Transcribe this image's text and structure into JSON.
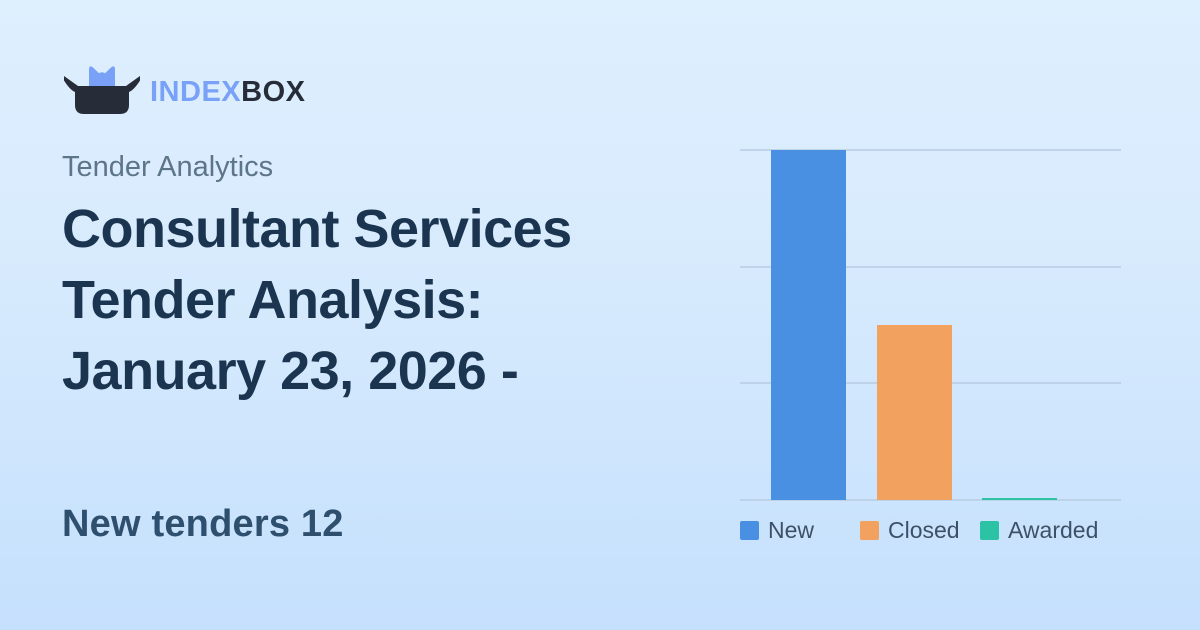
{
  "card": {
    "background_top": "#deeffe",
    "background_bottom": "#c5e0fd"
  },
  "logo": {
    "icon": "cat-in-box-icon",
    "text_primary": "INDEX",
    "text_secondary": "BOX",
    "color_primary": "#79a1f7",
    "color_dark": "#272c39"
  },
  "header": {
    "category": "Tender Analytics",
    "title": "Consultant Services Tender Analysis: January 23, 2026 -",
    "title_color": "#1b3550"
  },
  "stats": {
    "headline": "New tenders 12",
    "color": "#2f4f6e"
  },
  "chart_data": {
    "type": "bar",
    "categories": [
      "New",
      "Closed",
      "Awarded"
    ],
    "values": [
      12,
      6,
      0
    ],
    "colors": [
      "#4a90e2",
      "#f2a25e",
      "#2cc3a4"
    ],
    "title": "",
    "xlabel": "",
    "ylabel": "",
    "ylim": [
      0,
      12
    ],
    "gridline_values": [
      0,
      4,
      8,
      12
    ],
    "grid": true,
    "legend_entries": [
      "New",
      "Closed",
      "Awarded"
    ],
    "legend_position": "bottom-left",
    "gridline_color": "#b7cce1"
  }
}
